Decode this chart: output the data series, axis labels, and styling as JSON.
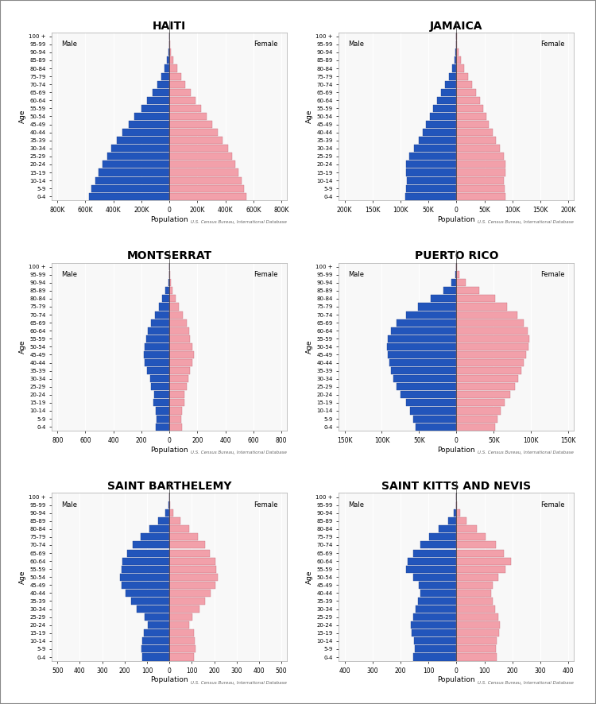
{
  "title_fontsize": 10,
  "axis_label_fontsize": 6.5,
  "tick_fontsize": 5.5,
  "age_label_fontsize": 5,
  "male_color": "#2255bb",
  "female_color": "#f2a0aa",
  "background_color": "#ffffff",
  "plot_bg_color": "#f8f8f8",
  "age_groups": [
    "0-4",
    "5-9",
    "10-14",
    "15-19",
    "20-24",
    "25-29",
    "30-34",
    "35-39",
    "40-44",
    "45-49",
    "50-54",
    "55-59",
    "60-64",
    "65-69",
    "70-74",
    "75-79",
    "80-84",
    "85-89",
    "90-94",
    "95-99",
    "100 +"
  ],
  "regions": [
    {
      "name": "HAITI",
      "xlim": 800000,
      "xticks": [
        -800000,
        -600000,
        -400000,
        -200000,
        0,
        200000,
        400000,
        600000,
        800000
      ],
      "xtick_labels": [
        "800K",
        "600K",
        "400K",
        "200K",
        "0",
        "200K",
        "400K",
        "600K",
        "800K"
      ],
      "male": [
        575000,
        555000,
        530000,
        505000,
        475000,
        445000,
        415000,
        375000,
        335000,
        290000,
        248000,
        200000,
        160000,
        122000,
        88000,
        60000,
        36000,
        16000,
        6000,
        1500,
        300
      ],
      "female": [
        550000,
        530000,
        515000,
        495000,
        470000,
        445000,
        418000,
        382000,
        348000,
        308000,
        268000,
        228000,
        188000,
        150000,
        114000,
        82000,
        54000,
        28000,
        12000,
        3500,
        700
      ]
    },
    {
      "name": "JAMAICA",
      "xlim": 200000,
      "xticks": [
        -200000,
        -150000,
        -100000,
        -50000,
        0,
        50000,
        100000,
        150000,
        200000
      ],
      "xtick_labels": [
        "200K",
        "150K",
        "100K",
        "50K",
        "0",
        "50K",
        "100K",
        "150K",
        "200K"
      ],
      "male": [
        92000,
        90000,
        88000,
        90000,
        90000,
        84000,
        76000,
        68000,
        60000,
        54000,
        48000,
        42000,
        35000,
        28000,
        20000,
        13000,
        8000,
        4000,
        1500,
        500,
        100
      ],
      "female": [
        87000,
        86000,
        84000,
        87000,
        88000,
        84000,
        78000,
        70000,
        64000,
        58000,
        53000,
        48000,
        42000,
        35000,
        28000,
        20000,
        14000,
        7500,
        3000,
        1000,
        200
      ]
    },
    {
      "name": "MONTSERRAT",
      "xlim": 800,
      "xticks": [
        -800,
        -600,
        -400,
        -200,
        0,
        200,
        400,
        600,
        800
      ],
      "xtick_labels": [
        "800",
        "600",
        "400",
        "200",
        "0",
        "200",
        "400",
        "600",
        "800"
      ],
      "male": [
        95,
        90,
        100,
        115,
        110,
        130,
        140,
        160,
        175,
        185,
        175,
        165,
        155,
        130,
        105,
        75,
        50,
        28,
        9,
        3,
        0
      ],
      "female": [
        88,
        84,
        90,
        108,
        105,
        125,
        135,
        148,
        165,
        175,
        162,
        148,
        142,
        122,
        98,
        68,
        44,
        24,
        8,
        2,
        0
      ]
    },
    {
      "name": "PUERTO RICO",
      "xlim": 150000,
      "xticks": [
        -150000,
        -100000,
        -50000,
        0,
        50000,
        100000,
        150000
      ],
      "xtick_labels": [
        "150K",
        "100K",
        "50K",
        "0",
        "50K",
        "100K",
        "150K"
      ],
      "male": [
        55000,
        58000,
        62000,
        68000,
        75000,
        80000,
        85000,
        88000,
        90000,
        92000,
        93000,
        92000,
        88000,
        80000,
        68000,
        52000,
        35000,
        18000,
        6500,
        1800,
        350
      ],
      "female": [
        52000,
        55000,
        59000,
        65000,
        72000,
        78000,
        83000,
        87000,
        90000,
        93000,
        96000,
        97000,
        95000,
        90000,
        82000,
        68000,
        52000,
        30000,
        12000,
        4000,
        800
      ]
    },
    {
      "name": "SAINT BARTHELEMY",
      "xlim": 500,
      "xticks": [
        -500,
        -400,
        -300,
        -200,
        -100,
        0,
        100,
        200,
        300,
        400,
        500
      ],
      "xtick_labels": [
        "500",
        "400",
        "300",
        "200",
        "100",
        "0",
        "100",
        "200",
        "300",
        "400",
        "500"
      ],
      "male": [
        120,
        125,
        120,
        115,
        95,
        110,
        145,
        170,
        195,
        215,
        220,
        215,
        210,
        188,
        165,
        130,
        90,
        50,
        20,
        5,
        0
      ],
      "female": [
        110,
        115,
        112,
        108,
        88,
        102,
        135,
        160,
        185,
        205,
        215,
        210,
        205,
        182,
        160,
        128,
        88,
        48,
        18,
        4,
        0
      ]
    },
    {
      "name": "SAINT KITTS AND NEVIS",
      "xlim": 400,
      "xticks": [
        -400,
        -300,
        -200,
        -100,
        0,
        100,
        200,
        300,
        400
      ],
      "xtick_labels": [
        "400",
        "300",
        "200",
        "100",
        "0",
        "100",
        "200",
        "300",
        "400"
      ],
      "male": [
        155,
        148,
        152,
        160,
        162,
        155,
        145,
        138,
        130,
        135,
        155,
        180,
        175,
        155,
        130,
        98,
        65,
        30,
        10,
        2,
        0
      ],
      "female": [
        145,
        140,
        143,
        152,
        155,
        148,
        138,
        130,
        124,
        130,
        150,
        175,
        195,
        170,
        140,
        105,
        72,
        35,
        12,
        3,
        0
      ]
    }
  ]
}
